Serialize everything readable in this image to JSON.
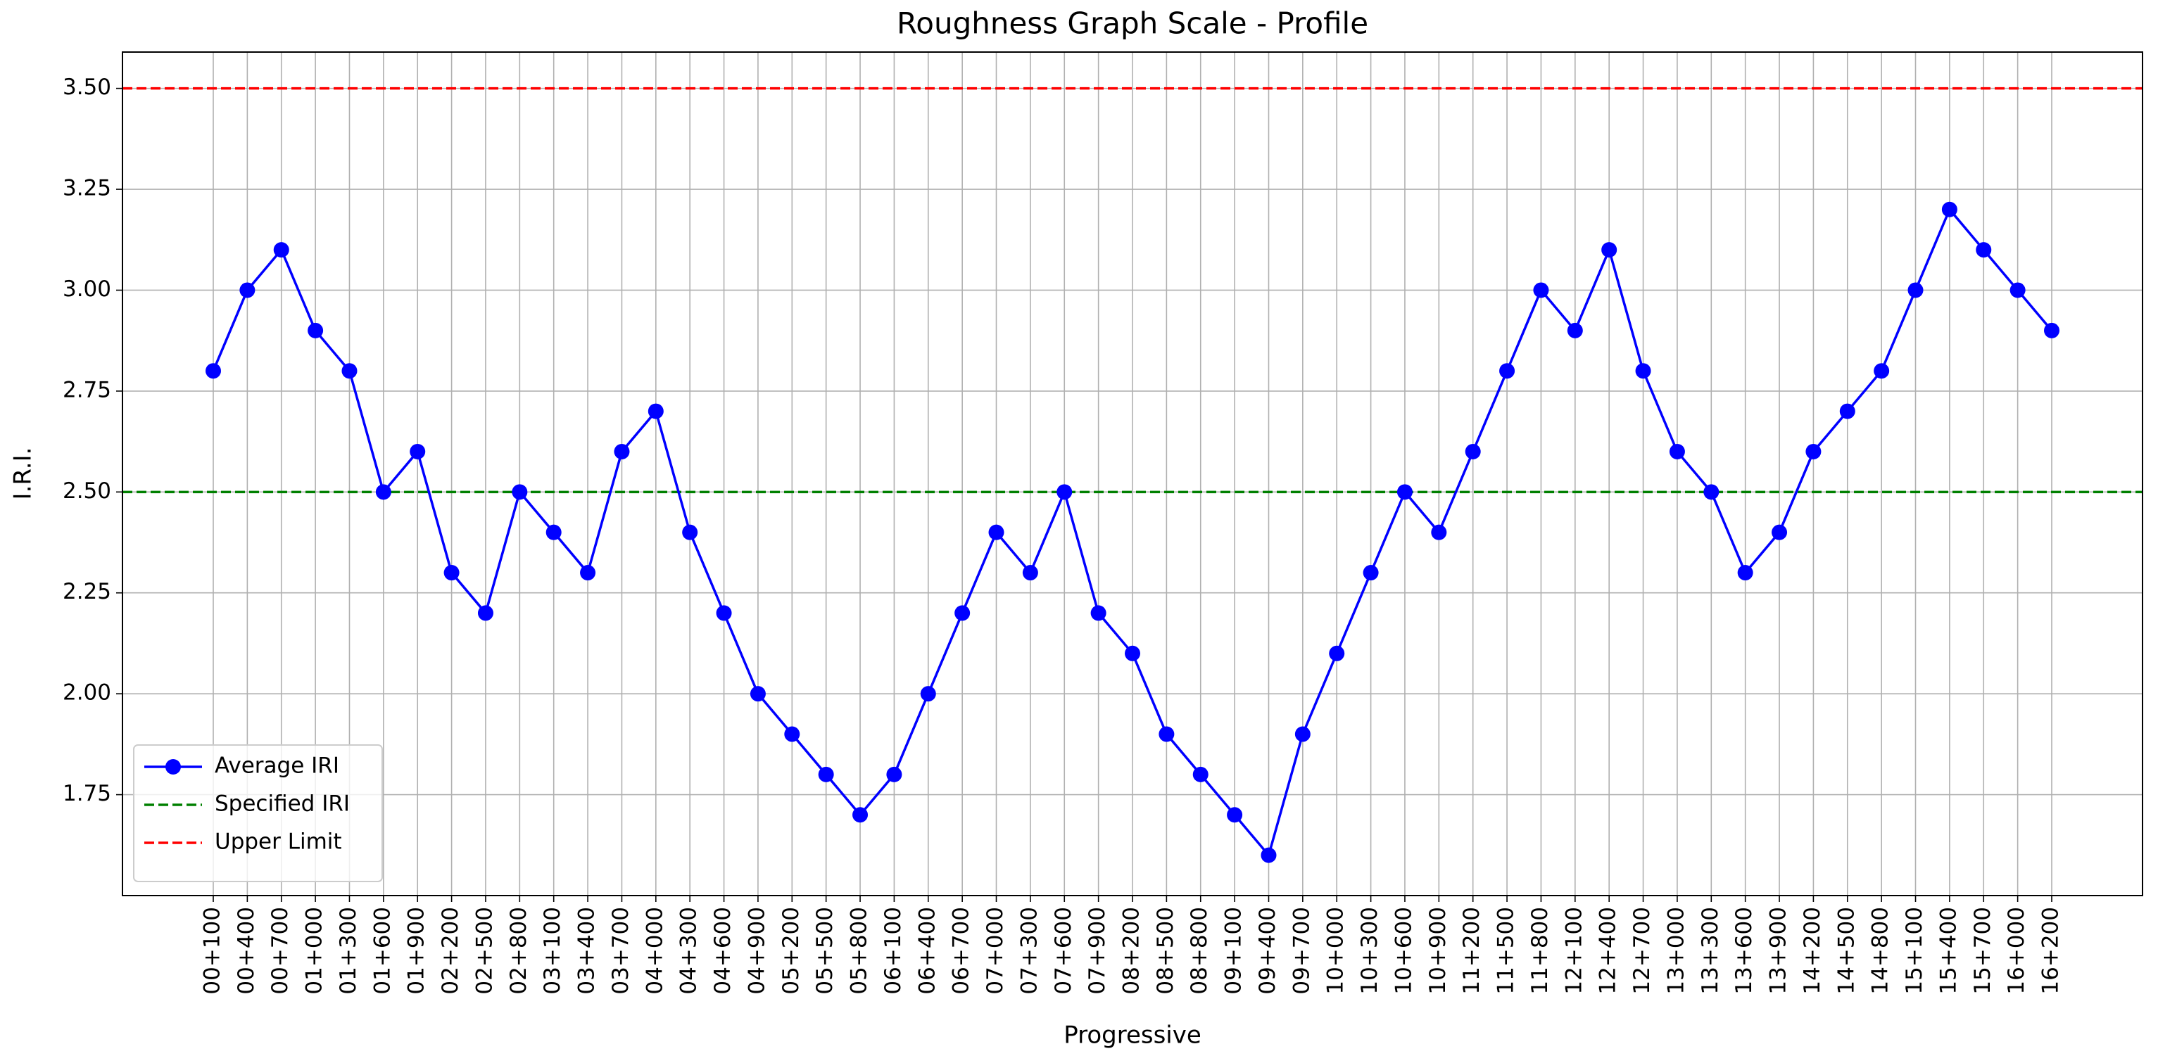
{
  "chart_data": {
    "type": "line",
    "title": "Roughness Graph Scale - Profile",
    "x_label": "Progressive",
    "y_label": "I.R.I.",
    "categories": [
      "00+100",
      "00+400",
      "00+700",
      "01+000",
      "01+300",
      "01+600",
      "01+900",
      "02+200",
      "02+500",
      "02+800",
      "03+100",
      "03+400",
      "03+700",
      "04+000",
      "04+300",
      "04+600",
      "04+900",
      "05+200",
      "05+500",
      "05+800",
      "06+100",
      "06+400",
      "06+700",
      "07+000",
      "07+300",
      "07+600",
      "07+900",
      "08+200",
      "08+500",
      "08+800",
      "09+100",
      "09+400",
      "09+700",
      "10+000",
      "10+300",
      "10+600",
      "10+900",
      "11+200",
      "11+500",
      "11+800",
      "12+100",
      "12+400",
      "12+700",
      "13+000",
      "13+300",
      "13+600",
      "13+900",
      "14+200",
      "14+500",
      "14+800",
      "15+100",
      "15+400",
      "15+700",
      "16+000",
      "16+200"
    ],
    "series": [
      {
        "name": "Average IRI",
        "color": "#0000ff",
        "values": [
          2.8,
          3.0,
          3.1,
          2.9,
          2.8,
          2.5,
          2.6,
          2.3,
          2.2,
          2.5,
          2.4,
          2.3,
          2.6,
          2.7,
          2.4,
          2.2,
          2.0,
          1.9,
          1.8,
          1.7,
          1.8,
          2.0,
          2.2,
          2.4,
          2.3,
          2.5,
          2.2,
          2.1,
          1.9,
          1.8,
          1.7,
          1.6,
          1.9,
          2.1,
          2.3,
          2.5,
          2.4,
          2.6,
          2.8,
          3.0,
          2.9,
          3.1,
          2.8,
          2.6,
          2.5,
          2.3,
          2.4,
          2.6,
          2.7,
          2.8,
          3.0,
          3.2,
          3.1,
          3.0,
          2.9
        ]
      }
    ],
    "reference_lines": [
      {
        "name": "Specified IRI",
        "color": "#008000",
        "value": 2.5
      },
      {
        "name": "Upper Limit",
        "color": "#ff0000",
        "value": 3.5
      }
    ],
    "ylim": [
      1.5,
      3.59
    ],
    "yticks": [
      {
        "value": 1.75,
        "label": "1.75"
      },
      {
        "value": 2.0,
        "label": "2.00"
      },
      {
        "value": 2.25,
        "label": "2.25"
      },
      {
        "value": 2.5,
        "label": "2.50"
      },
      {
        "value": 2.75,
        "label": "2.75"
      },
      {
        "value": 3.0,
        "label": "3.00"
      },
      {
        "value": 3.25,
        "label": "3.25"
      },
      {
        "value": 3.5,
        "label": "3.50"
      }
    ],
    "grid": true,
    "legend": "lower left"
  }
}
